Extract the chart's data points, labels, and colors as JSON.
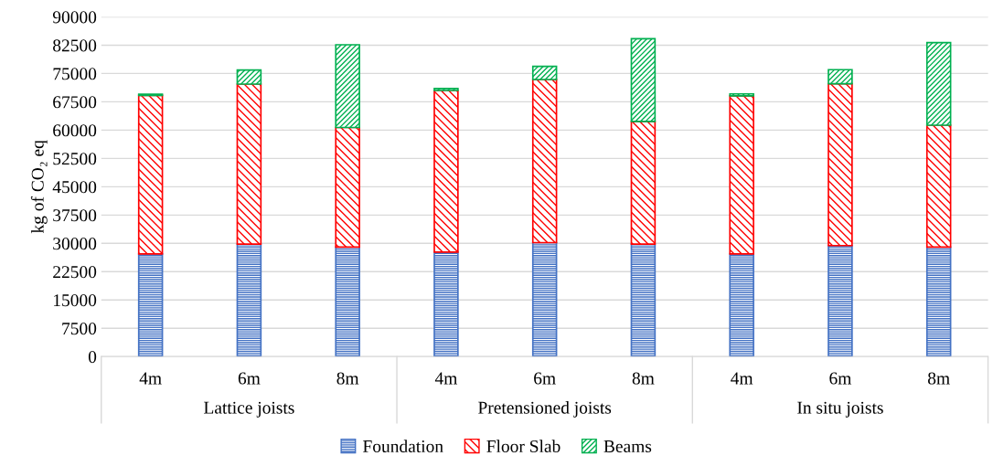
{
  "chart_data": {
    "type": "bar",
    "stacked": true,
    "ylabel": "kg of CO₂ eq",
    "categories": [
      "4m",
      "6m",
      "8m",
      "4m",
      "6m",
      "8m",
      "4m",
      "6m",
      "8m"
    ],
    "annotations": [
      "Lattice joists",
      "Pretensioned joists",
      "In situ joists"
    ],
    "series": [
      {
        "name": "Foundation",
        "color": "#4472c4",
        "values": [
          27200,
          29800,
          29000,
          27700,
          30200,
          29800,
          27200,
          29400,
          29000
        ]
      },
      {
        "name": "Floor Slab",
        "color": "#ff0000",
        "values": [
          42000,
          42400,
          31700,
          42800,
          43200,
          32500,
          41900,
          42900,
          32300
        ]
      },
      {
        "name": "Beams",
        "color": "#00b050",
        "values": [
          300,
          3700,
          21900,
          500,
          3500,
          21900,
          500,
          3700,
          21900
        ]
      }
    ],
    "ylim": [
      0,
      90000
    ],
    "yticks": [
      0,
      7500,
      15000,
      22500,
      30000,
      37500,
      45000,
      52500,
      60000,
      67500,
      75000,
      82500,
      90000
    ],
    "grid": "y",
    "legend": "bottom"
  }
}
